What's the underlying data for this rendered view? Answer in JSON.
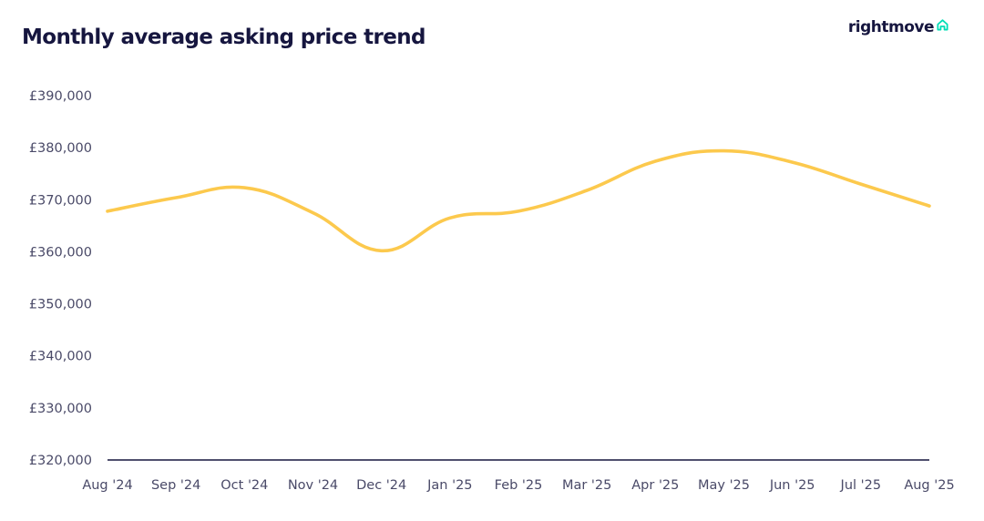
{
  "brand": {
    "name": "rightmove",
    "accent_color": "#00DEB6",
    "icon": "house-outline-icon"
  },
  "chart_data": {
    "type": "line",
    "title": "Monthly average asking price trend",
    "xlabel": "",
    "ylabel": "",
    "categories": [
      "Aug '24",
      "Sep '24",
      "Oct '24",
      "Nov '24",
      "Dec '24",
      "Jan '25",
      "Feb '25",
      "Mar '25",
      "Apr '25",
      "May '25",
      "Jun '25",
      "Jul '25",
      "Aug '25"
    ],
    "series": [
      {
        "color": "#FCC94D",
        "values": [
          367800,
          370400,
          372300,
          367500,
          360200,
          366500,
          367800,
          371800,
          377400,
          379400,
          377200,
          373000,
          368800
        ]
      }
    ],
    "ylim": [
      320000,
      390000
    ],
    "yticks": [
      320000,
      330000,
      340000,
      350000,
      360000,
      370000,
      380000,
      390000
    ],
    "ytick_labels": [
      "£320,000",
      "£330,000",
      "£340,000",
      "£350,000",
      "£360,000",
      "£370,000",
      "£380,000",
      "£390,000"
    ],
    "grid": false,
    "legend": "none",
    "axis_color": "#16163f"
  }
}
